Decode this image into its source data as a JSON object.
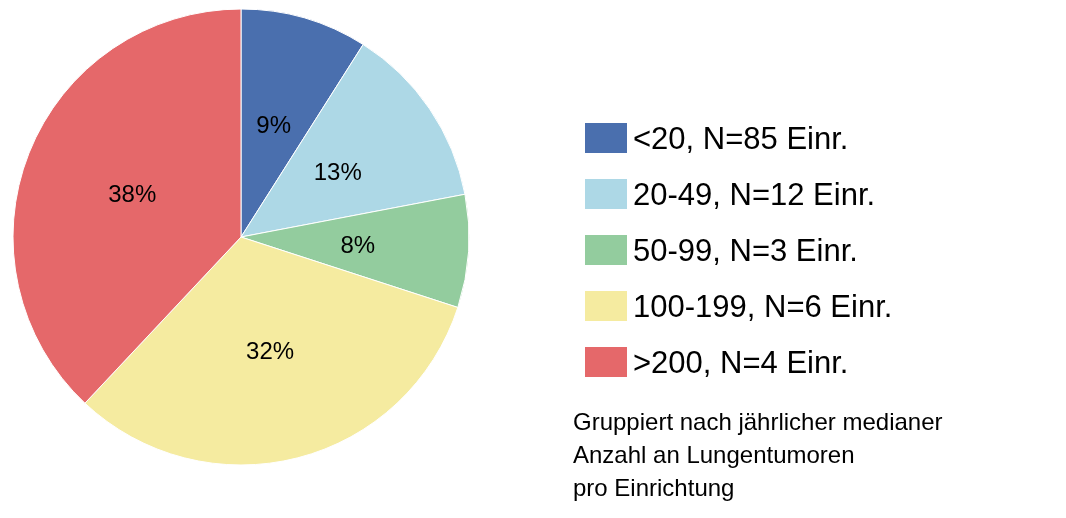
{
  "chart_data": {
    "type": "pie",
    "categories": [
      "<20, N=85 Einr.",
      "20-49, N=12 Einr.",
      "50-99, N=3 Einr.",
      "100-199, N=6 Einr.",
      ">200, N=4 Einr."
    ],
    "values": [
      9,
      13,
      8,
      32,
      38
    ],
    "colors": [
      "#4a6fae",
      "#add8e6",
      "#93cc9e",
      "#f5eba0",
      "#e5686a"
    ],
    "value_labels": [
      "9%",
      "13%",
      "8%",
      "32%",
      "38%"
    ],
    "legend": "right",
    "annotations": [
      "Gruppiert nach jährlicher medianer\nAnzahl an Lungentumoren\npro Einrichtung"
    ]
  }
}
